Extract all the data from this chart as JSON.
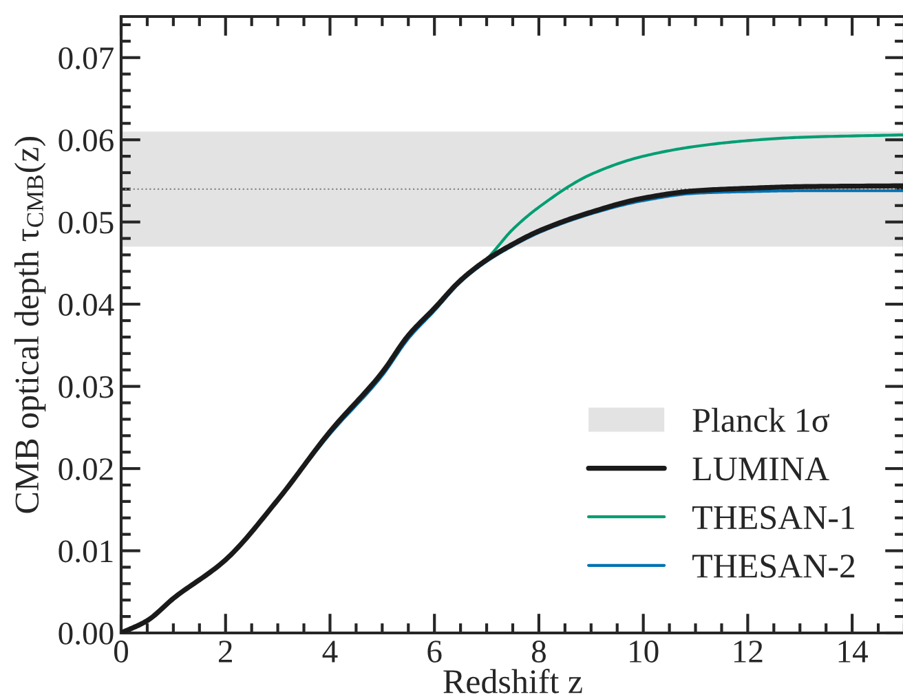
{
  "chart_data": {
    "type": "line",
    "xlabel": "Redshift z",
    "ylabel": "CMB optical depth τ$_{CMB}$(z)",
    "x": [
      0,
      0.5,
      1,
      2,
      3,
      4,
      5,
      5.5,
      6,
      6.5,
      7,
      7.5,
      8,
      9,
      10,
      11,
      12,
      13,
      15
    ],
    "series": [
      {
        "name": "LUMINA",
        "color": "#1a1a1a",
        "values": [
          0,
          0.0015,
          0.0042,
          0.0089,
          0.0162,
          0.0245,
          0.0317,
          0.0362,
          0.0395,
          0.0429,
          0.0454,
          0.0473,
          0.0489,
          0.0512,
          0.0529,
          0.0538,
          0.0541,
          0.0543,
          0.0544
        ]
      },
      {
        "name": "THESAN-1",
        "color": "#009e73",
        "values": [
          null,
          null,
          null,
          null,
          null,
          null,
          0.0317,
          0.0362,
          0.0395,
          0.0429,
          0.0455,
          0.0491,
          0.0518,
          0.0558,
          0.058,
          0.0592,
          0.0599,
          0.0603,
          0.0606
        ]
      },
      {
        "name": "THESAN-2",
        "color": "#0072b2",
        "values": [
          null,
          null,
          null,
          null,
          0.0161,
          0.0242,
          0.0313,
          0.0358,
          0.0392,
          0.0427,
          0.0452,
          0.0471,
          0.0487,
          0.051,
          0.0526,
          0.0535,
          0.0537,
          0.0538,
          0.0538
        ]
      }
    ],
    "bands": [
      {
        "axis": "y",
        "from": 0.047,
        "to": 0.061,
        "label": "Planck 1σ",
        "color": "#e3e3e3"
      }
    ],
    "ref_lines": [
      {
        "axis": "y",
        "value": 0.054,
        "color": "#888888",
        "line_style": "dotted"
      }
    ],
    "xlim": [
      0,
      15
    ],
    "xticks": [
      0,
      2,
      4,
      6,
      8,
      10,
      12,
      14
    ],
    "ylim": [
      0,
      0.075
    ],
    "yticks": [
      {
        "value": 0,
        "label": "0.00"
      },
      {
        "value": 0.01,
        "label": "0.01"
      },
      {
        "value": 0.02,
        "label": "0.02"
      },
      {
        "value": 0.03,
        "label": "0.03"
      },
      {
        "value": 0.04,
        "label": "0.04"
      },
      {
        "value": 0.05,
        "label": "0.05"
      },
      {
        "value": 0.06,
        "label": "0.06"
      },
      {
        "value": 0.07,
        "label": "0.07"
      }
    ],
    "grid": false,
    "legend": "bottom right",
    "line_style": "solid",
    "marker": "none"
  }
}
